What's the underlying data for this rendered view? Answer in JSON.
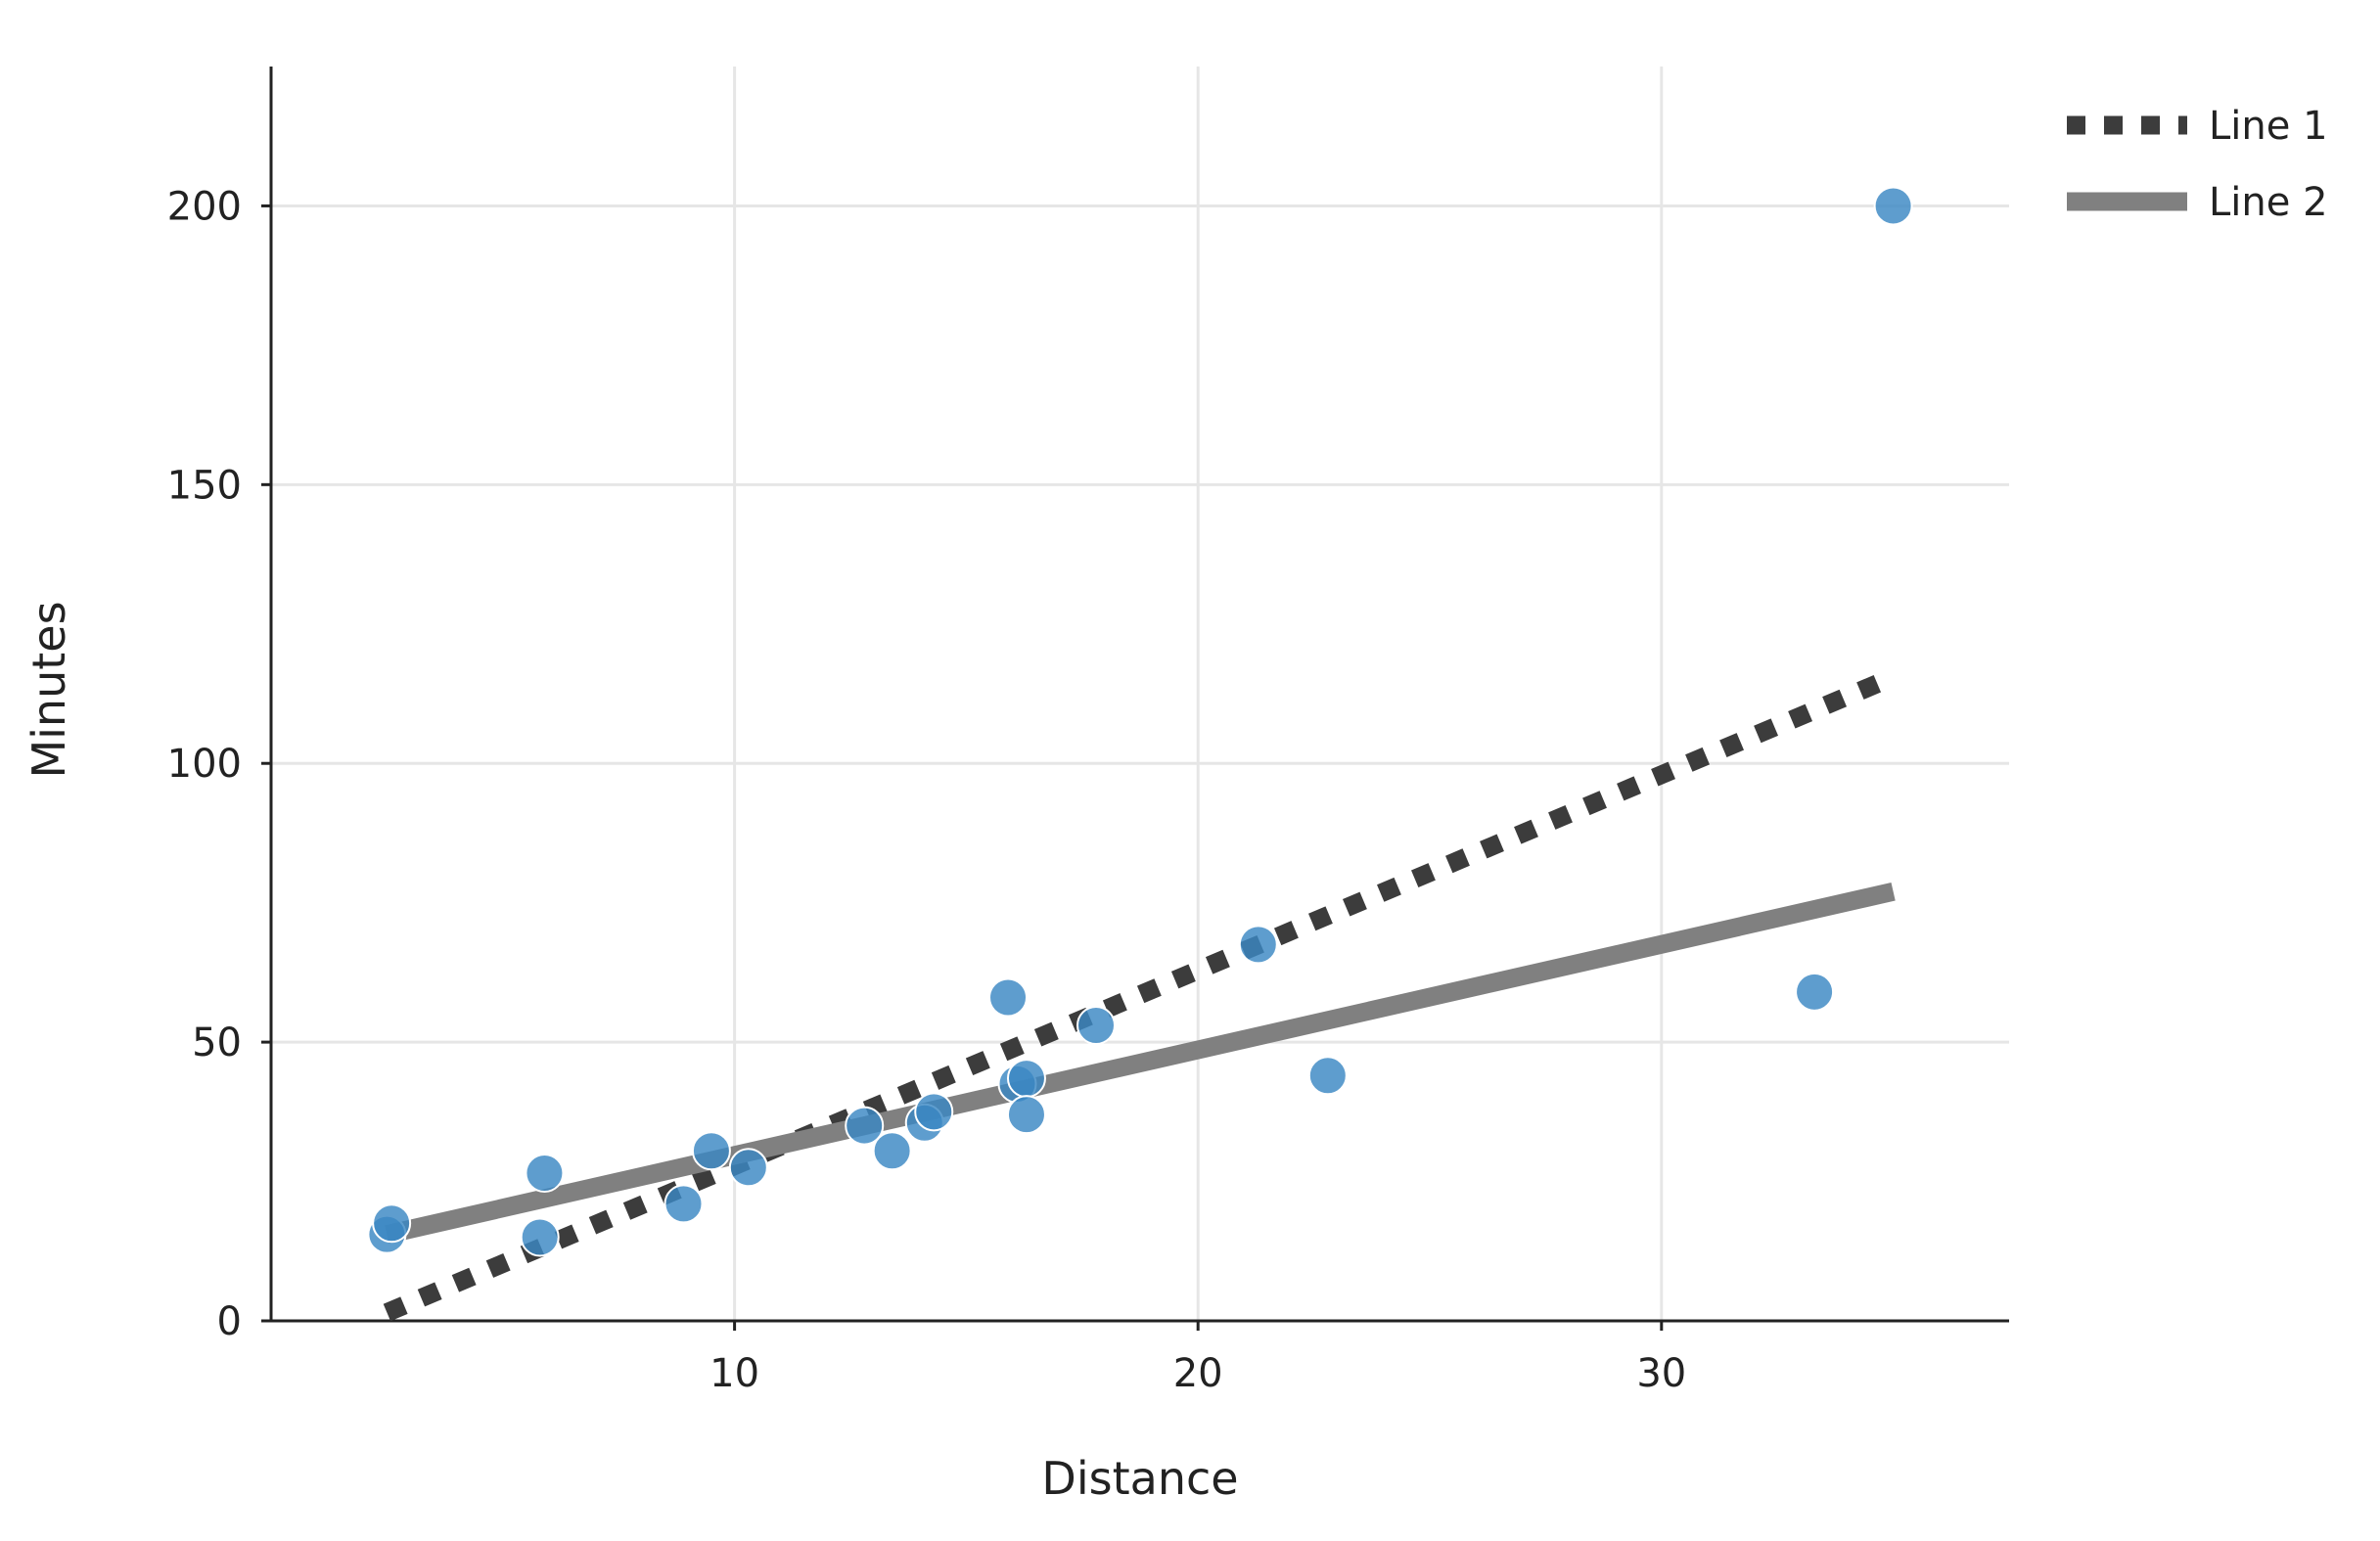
{
  "chart_data": {
    "type": "scatter",
    "title": "",
    "xlabel": "Distance",
    "ylabel": "Minutes",
    "xlim": [
      0,
      37.5
    ],
    "ylim": [
      0,
      225
    ],
    "x_ticks": [
      10,
      20,
      30
    ],
    "y_ticks": [
      0,
      50,
      100,
      150,
      200
    ],
    "grid": true,
    "legend_position": "top-right, outside plot",
    "colors": {
      "points": "#3a87c3",
      "line1": "#3c3c3c",
      "line2": "#808080",
      "grid": "#e6e6e6",
      "axis": "#222222"
    },
    "points": [
      {
        "x": 2.5,
        "y": 15.5
      },
      {
        "x": 2.6,
        "y": 17.5
      },
      {
        "x": 5.8,
        "y": 15
      },
      {
        "x": 5.9,
        "y": 26.5
      },
      {
        "x": 8.9,
        "y": 21
      },
      {
        "x": 9.5,
        "y": 30.5
      },
      {
        "x": 10.3,
        "y": 27.5
      },
      {
        "x": 12.8,
        "y": 35
      },
      {
        "x": 13.4,
        "y": 30.5
      },
      {
        "x": 14.1,
        "y": 35.5
      },
      {
        "x": 14.3,
        "y": 37.5
      },
      {
        "x": 15.9,
        "y": 58
      },
      {
        "x": 16.1,
        "y": 42.5
      },
      {
        "x": 16.3,
        "y": 43.5
      },
      {
        "x": 16.3,
        "y": 37
      },
      {
        "x": 17.8,
        "y": 53
      },
      {
        "x": 21.3,
        "y": 67.5
      },
      {
        "x": 22.8,
        "y": 44
      },
      {
        "x": 33.3,
        "y": 59
      },
      {
        "x": 35.0,
        "y": 200
      }
    ],
    "series": [
      {
        "name": "Line 1",
        "style": "dotted",
        "x": [
          2.5,
          35.0
        ],
        "y": [
          1.5,
          115.5
        ]
      },
      {
        "name": "Line 2",
        "style": "solid",
        "x": [
          2.5,
          35.0
        ],
        "y": [
          15.5,
          77
        ]
      }
    ]
  }
}
